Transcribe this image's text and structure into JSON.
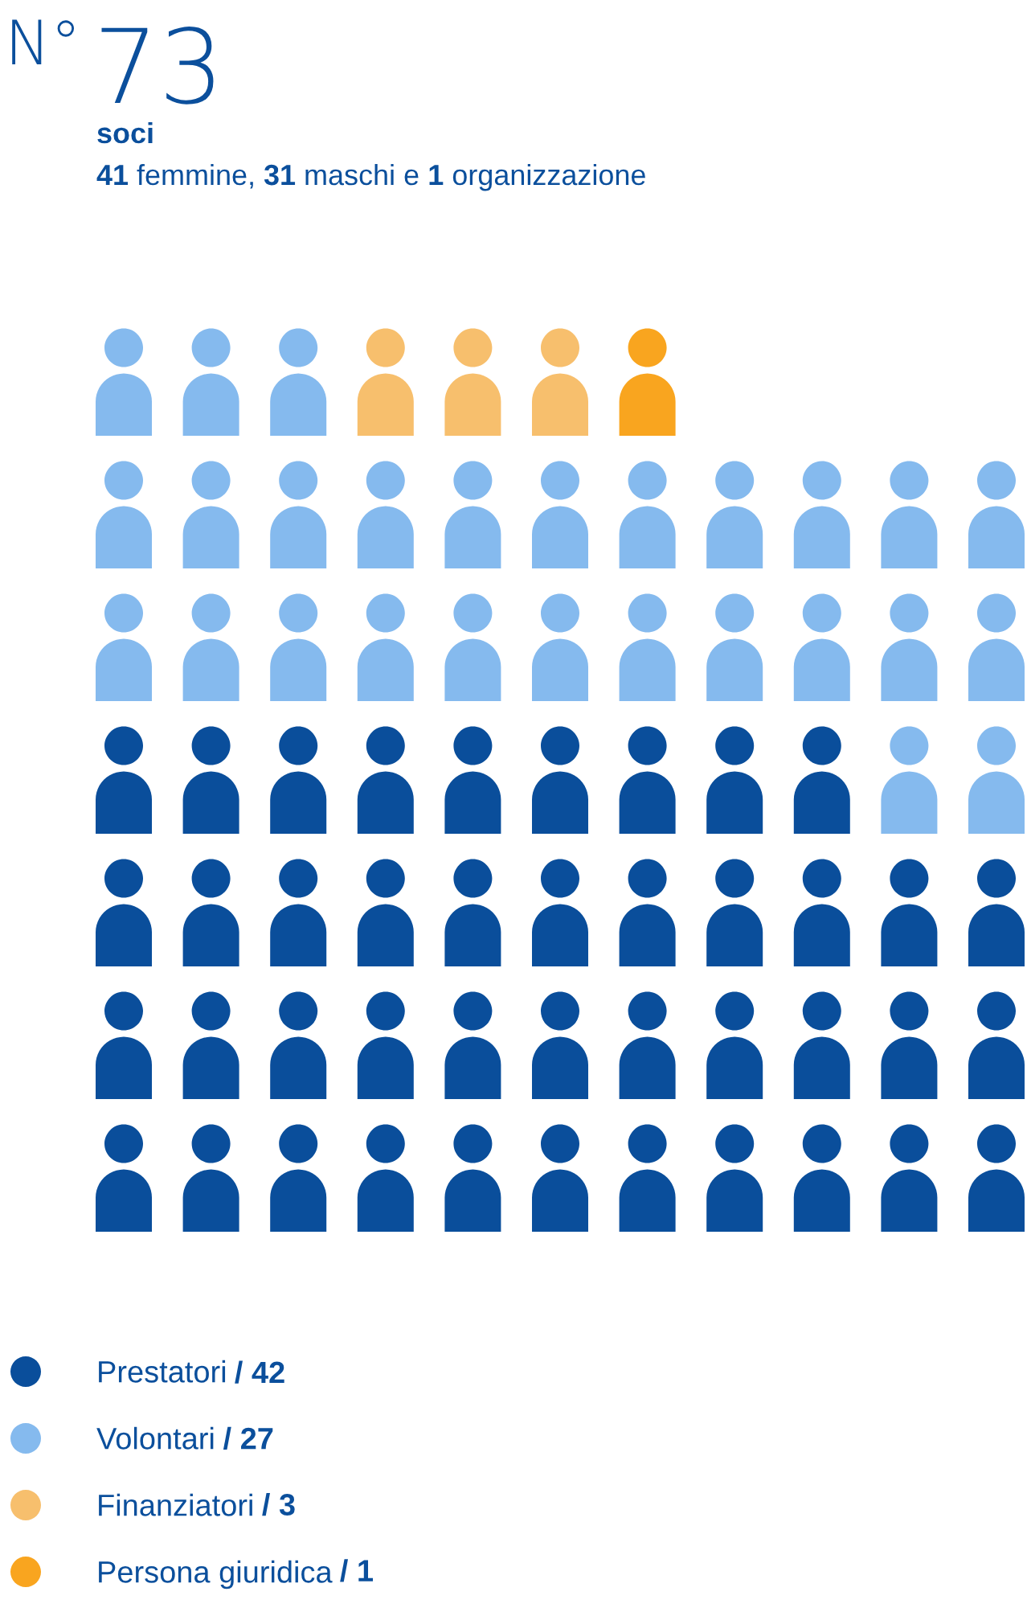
{
  "chart_data": {
    "type": "other",
    "title": "N° 73",
    "subtitle": "soci",
    "annotations": [
      "41 femmine, 31 maschi e 1 organizzazione"
    ],
    "categories": [
      "Prestatori",
      "Volontari",
      "Finanziatori",
      "Persona giuridica"
    ],
    "values": [
      42,
      27,
      3,
      1
    ],
    "value_labels": [
      "/ 42",
      "/ 27",
      "/ 3",
      "/ 1"
    ],
    "colors": [
      "#0a4e9b",
      "#85baee",
      "#f7bf6d",
      "#f9a51f"
    ]
  }
}
